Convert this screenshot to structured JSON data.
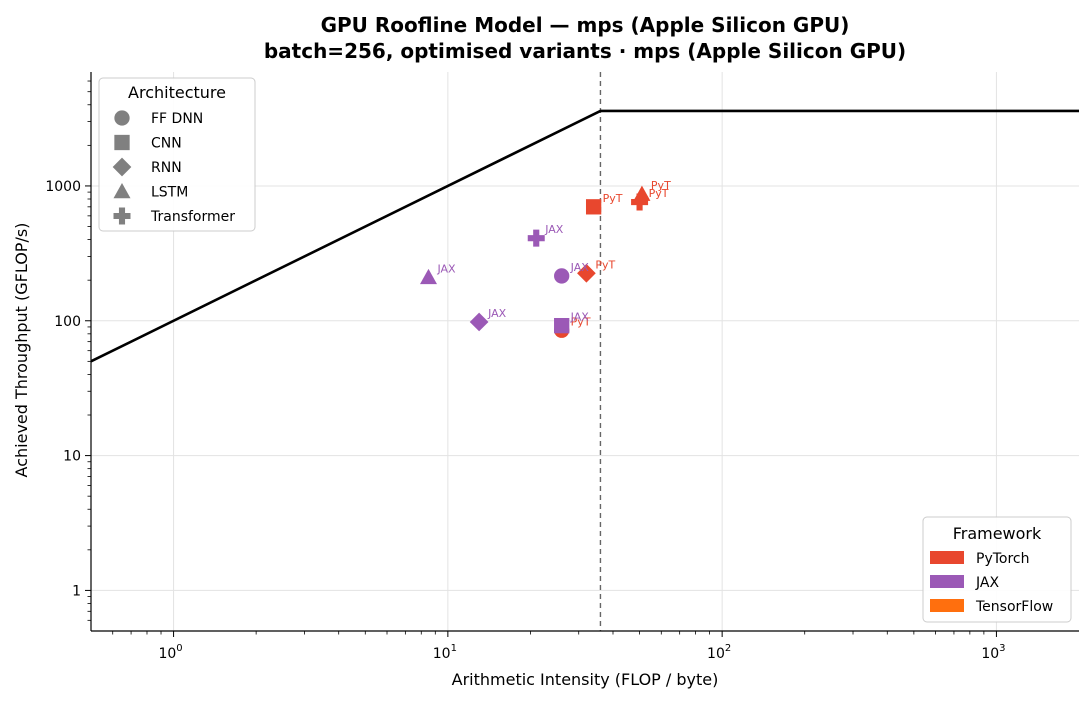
{
  "chart_data": {
    "type": "scatter",
    "title": "GPU Roofline Model — mps (Apple Silicon GPU)",
    "subtitle": "batch=256, optimised variants  ·  mps (Apple Silicon GPU)",
    "xlabel": "Arithmetic Intensity (FLOP / byte)",
    "ylabel": "Achieved Throughput (GFLOP/s)",
    "xscale": "log",
    "yscale": "log",
    "xlim": [
      0.5,
      2000
    ],
    "ylim": [
      0.5,
      7000
    ],
    "grid": true,
    "x_ticks": [
      {
        "value": 1,
        "base": "10",
        "exp": "0"
      },
      {
        "value": 10,
        "base": "10",
        "exp": "1"
      },
      {
        "value": 100,
        "base": "10",
        "exp": "2"
      },
      {
        "value": 1000,
        "base": "10",
        "exp": "3"
      }
    ],
    "y_ticks": [
      {
        "value": 1,
        "label": "1"
      },
      {
        "value": 10,
        "label": "10"
      },
      {
        "value": 100,
        "label": "100"
      },
      {
        "value": 1000,
        "label": "1000"
      }
    ],
    "roofline": {
      "ridge_point": 36,
      "peak_gflops": 3600,
      "bandwidth_gb_s": 100,
      "color": "#000000"
    },
    "series": [
      {
        "name": "PyTorch",
        "color": "#e8472e",
        "points": [
          {
            "arch": "FF DNN",
            "x": 26,
            "y": 85,
            "label": "PyT"
          },
          {
            "arch": "CNN",
            "x": 34,
            "y": 700,
            "label": "PyT"
          },
          {
            "arch": "RNN",
            "x": 32,
            "y": 225,
            "label": "PyT"
          },
          {
            "arch": "LSTM",
            "x": 51,
            "y": 870,
            "label": "PyT"
          },
          {
            "arch": "Transformer",
            "x": 50,
            "y": 760,
            "label": "PyT"
          }
        ]
      },
      {
        "name": "JAX",
        "color": "#9b59b6",
        "points": [
          {
            "arch": "FF DNN",
            "x": 26,
            "y": 215,
            "label": "JAX"
          },
          {
            "arch": "CNN",
            "x": 26,
            "y": 92,
            "label": "JAX"
          },
          {
            "arch": "RNN",
            "x": 13,
            "y": 98,
            "label": "JAX"
          },
          {
            "arch": "LSTM",
            "x": 8.5,
            "y": 210,
            "label": "JAX"
          },
          {
            "arch": "Transformer",
            "x": 21,
            "y": 410,
            "label": "JAX"
          }
        ]
      },
      {
        "name": "TensorFlow",
        "color": "#ff6f0e",
        "points": []
      }
    ],
    "architecture_legend": {
      "title": "Architecture",
      "placement": "top-left",
      "color": "#808080",
      "items": [
        {
          "label": "FF DNN",
          "marker": "circle"
        },
        {
          "label": "CNN",
          "marker": "square"
        },
        {
          "label": "RNN",
          "marker": "diamond"
        },
        {
          "label": "LSTM",
          "marker": "triangle"
        },
        {
          "label": "Transformer",
          "marker": "plus"
        }
      ]
    },
    "framework_legend": {
      "title": "Framework",
      "placement": "bottom-right",
      "items": [
        {
          "label": "PyTorch",
          "color": "#e8472e"
        },
        {
          "label": "JAX",
          "color": "#9b59b6"
        },
        {
          "label": "TensorFlow",
          "color": "#ff6f0e"
        }
      ]
    }
  }
}
